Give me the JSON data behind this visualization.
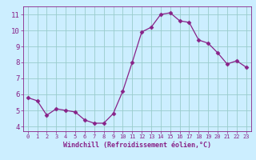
{
  "x": [
    0,
    1,
    2,
    3,
    4,
    5,
    6,
    7,
    8,
    9,
    10,
    11,
    12,
    13,
    14,
    15,
    16,
    17,
    18,
    19,
    20,
    21,
    22,
    23
  ],
  "y": [
    5.8,
    5.6,
    4.7,
    5.1,
    5.0,
    4.9,
    4.4,
    4.2,
    4.2,
    4.8,
    6.2,
    8.0,
    9.9,
    10.2,
    11.0,
    11.1,
    10.6,
    10.5,
    9.4,
    9.2,
    8.6,
    7.9,
    8.1,
    7.7
  ],
  "line_color": "#882288",
  "marker": "D",
  "marker_size": 2.5,
  "bg_color": "#cceeff",
  "grid_color": "#99cccc",
  "xlabel": "Windchill (Refroidissement éolien,°C)",
  "xlabel_color": "#882288",
  "tick_color": "#882288",
  "ylim": [
    3.7,
    11.5
  ],
  "xlim": [
    -0.5,
    23.5
  ],
  "yticks": [
    4,
    5,
    6,
    7,
    8,
    9,
    10,
    11
  ],
  "xticks": [
    0,
    1,
    2,
    3,
    4,
    5,
    6,
    7,
    8,
    9,
    10,
    11,
    12,
    13,
    14,
    15,
    16,
    17,
    18,
    19,
    20,
    21,
    22,
    23
  ],
  "xlabel_fontsize": 6.0,
  "tick_fontsize_x": 5.0,
  "tick_fontsize_y": 6.5
}
